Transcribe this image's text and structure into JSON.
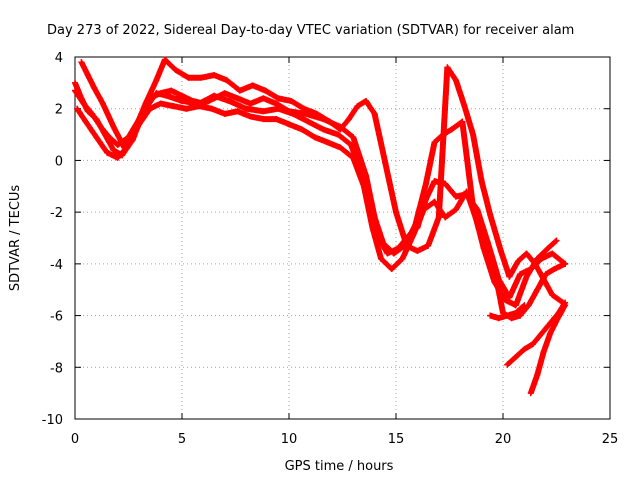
{
  "chart_data": {
    "type": "scatter",
    "title": "Day 273 of 2022, Sidereal Day-to-day VTEC variation (SDTVAR) for receiver alam",
    "xlabel": "GPS time / hours",
    "ylabel": "SDTVAR / TECUs",
    "xlim": [
      0,
      25
    ],
    "ylim": [
      -10,
      4
    ],
    "xticks": [
      0,
      5,
      10,
      15,
      20,
      25
    ],
    "yticks": [
      4,
      2,
      0,
      -2,
      -4,
      -6,
      -8,
      -10
    ],
    "grid": true,
    "marker": "plus",
    "color": "#ff0000",
    "series": [
      {
        "name": "trace-1",
        "x": [
          0.0,
          0.3,
          0.6,
          1.0,
          1.4,
          1.8,
          2.2,
          2.7,
          3.2,
          3.8,
          4.3,
          5.0,
          5.8,
          6.5,
          7.2,
          8.0,
          8.8,
          9.5,
          10.2,
          10.9,
          11.6,
          12.3,
          12.9,
          13.4,
          13.8,
          14.2,
          14.6,
          15.1,
          15.6,
          16.0,
          16.4,
          16.8,
          17.3,
          17.8,
          18.3,
          18.8,
          19.3,
          19.8,
          20.3,
          20.8,
          21.3,
          21.8,
          22.3,
          22.9
        ],
        "y": [
          3.0,
          2.4,
          1.9,
          1.6,
          1.0,
          0.4,
          0.2,
          0.8,
          1.9,
          2.6,
          2.5,
          2.3,
          2.2,
          2.5,
          2.3,
          2.0,
          1.9,
          2.0,
          1.8,
          1.5,
          1.2,
          1.0,
          0.6,
          -0.5,
          -1.9,
          -3.0,
          -3.6,
          -3.4,
          -2.9,
          -2.6,
          -1.5,
          -0.8,
          -0.9,
          -1.4,
          -1.3,
          -1.9,
          -3.2,
          -4.6,
          -5.3,
          -4.4,
          -4.2,
          -3.8,
          -3.6,
          -4.0
        ]
      },
      {
        "name": "trace-2",
        "x": [
          0.0,
          0.4,
          0.8,
          1.2,
          1.6,
          2.0,
          2.5,
          3.0,
          3.5,
          4.0,
          4.5,
          5.0,
          5.5,
          6.0,
          6.5,
          7.0,
          7.6,
          8.2,
          8.8,
          9.4,
          10.0,
          10.8,
          11.6,
          12.4,
          13.0,
          13.6,
          14.0,
          14.4,
          14.9,
          15.4,
          15.9,
          16.4,
          16.8,
          17.2,
          17.6,
          18.1,
          18.6,
          19.1,
          19.6,
          20.1,
          20.6,
          21.1,
          21.6,
          22.1,
          22.5
        ],
        "y": [
          2.7,
          2.2,
          1.8,
          1.3,
          0.9,
          0.6,
          0.9,
          1.6,
          2.4,
          2.6,
          2.7,
          2.5,
          2.3,
          2.2,
          2.4,
          2.6,
          2.4,
          2.2,
          2.4,
          2.2,
          1.9,
          1.8,
          1.6,
          1.3,
          0.9,
          -0.6,
          -2.2,
          -3.2,
          -3.6,
          -3.3,
          -2.5,
          -0.9,
          0.7,
          1.0,
          1.2,
          1.5,
          -1.8,
          -3.4,
          -4.7,
          -5.4,
          -5.6,
          -4.5,
          -3.8,
          -3.4,
          -3.1
        ]
      },
      {
        "name": "trace-3",
        "x": [
          0.3,
          0.6,
          0.9,
          1.3,
          1.8,
          2.3,
          2.8,
          3.3,
          3.8,
          4.2,
          4.7,
          5.3,
          5.9,
          6.5,
          7.1,
          7.7,
          8.3,
          8.9,
          9.5,
          10.1,
          10.7,
          11.3,
          11.9,
          12.4,
          12.8,
          13.2,
          13.6,
          14.0,
          14.5,
          15.0,
          15.5,
          16.0,
          16.5,
          17.0,
          17.4,
          17.8,
          18.2,
          18.6,
          19.0,
          19.4,
          19.9,
          20.3,
          20.7,
          21.1,
          21.5,
          21.9,
          22.3,
          22.8
        ],
        "y": [
          3.8,
          3.3,
          2.8,
          2.2,
          1.3,
          0.5,
          1.2,
          2.2,
          3.1,
          3.9,
          3.5,
          3.2,
          3.2,
          3.3,
          3.1,
          2.7,
          2.9,
          2.7,
          2.4,
          2.3,
          2.0,
          1.8,
          1.5,
          1.2,
          1.6,
          2.1,
          2.3,
          1.8,
          -0.1,
          -2.0,
          -3.3,
          -3.5,
          -3.3,
          -2.2,
          3.6,
          3.1,
          2.1,
          1.0,
          -0.8,
          -2.1,
          -3.5,
          -4.5,
          -3.9,
          -3.6,
          -4.0,
          -4.6,
          -5.2,
          -5.5
        ]
      },
      {
        "name": "trace-4",
        "x": [
          0.1,
          0.5,
          1.0,
          1.5,
          2.0,
          2.5,
          3.0,
          3.5,
          4.0,
          4.6,
          5.2,
          5.8,
          6.4,
          7.0,
          7.6,
          8.2,
          8.8,
          9.4,
          10.0,
          10.6,
          11.2,
          11.8,
          12.4,
          13.0,
          13.5,
          13.9,
          14.3,
          14.8,
          15.3,
          15.8,
          16.3,
          16.8,
          17.3,
          17.8,
          18.3,
          18.8,
          19.2,
          19.6,
          20.0,
          20.4,
          20.8,
          21.2,
          21.6,
          22.0,
          22.4,
          22.9
        ],
        "y": [
          2.0,
          1.5,
          0.9,
          0.3,
          0.1,
          0.6,
          1.4,
          2.0,
          2.2,
          2.1,
          2.0,
          2.1,
          2.0,
          1.8,
          1.9,
          1.7,
          1.6,
          1.6,
          1.4,
          1.2,
          0.9,
          0.7,
          0.5,
          0.1,
          -1.0,
          -2.6,
          -3.8,
          -4.2,
          -3.8,
          -2.9,
          -1.9,
          -1.6,
          -2.2,
          -1.9,
          -1.2,
          -2.4,
          -3.4,
          -4.2,
          -5.9,
          -6.1,
          -6.0,
          -5.6,
          -5.0,
          -4.4,
          -4.2,
          -4.0
        ]
      },
      {
        "name": "trace-5",
        "x": [
          19.4,
          19.8,
          20.2,
          20.6,
          21.0
        ],
        "y": [
          -6.0,
          -6.1,
          -6.0,
          -5.9,
          -5.6
        ]
      },
      {
        "name": "trace-6",
        "x": [
          20.2,
          20.6,
          21.0,
          21.4,
          21.8,
          22.2,
          22.6,
          22.9
        ],
        "y": [
          -7.9,
          -7.6,
          -7.3,
          -7.1,
          -6.7,
          -6.3,
          -5.9,
          -5.5
        ]
      },
      {
        "name": "trace-7",
        "x": [
          21.3,
          21.6,
          21.9,
          22.2,
          22.5,
          22.9
        ],
        "y": [
          -9.0,
          -8.3,
          -7.4,
          -6.7,
          -6.2,
          -5.6
        ]
      }
    ]
  }
}
